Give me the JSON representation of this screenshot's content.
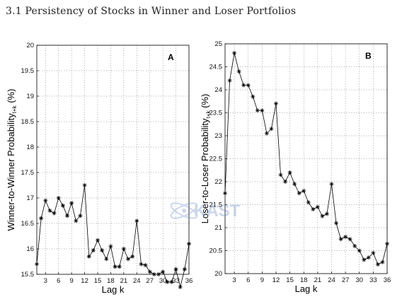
{
  "heading": "3.1 Persistency of Stocks in Winner and Loser Portfolios",
  "watermark_text": "KAST",
  "chart_data": [
    {
      "type": "line",
      "panel_label": "A",
      "xlabel": "Lag k",
      "ylabel_main": "Winner-to-Winner Probability",
      "ylabel_sub": "t+k",
      "ylabel_unit": " (%)",
      "xlim": [
        1,
        36
      ],
      "ylim": [
        15.5,
        20
      ],
      "xticks": [
        3,
        6,
        9,
        12,
        15,
        18,
        21,
        24,
        27,
        30,
        33,
        36
      ],
      "yticks": [
        15.5,
        16,
        16.5,
        17,
        17.5,
        18,
        18.5,
        19,
        19.5,
        20
      ],
      "ytick_labels": [
        "15.5",
        "16",
        "16.5",
        "17",
        "17.5",
        "18",
        "18.5",
        "19",
        "19.5",
        "20"
      ],
      "grid": true,
      "marker": "star",
      "x": [
        1,
        2,
        3,
        4,
        5,
        6,
        7,
        8,
        9,
        10,
        11,
        12,
        13,
        14,
        15,
        16,
        17,
        18,
        19,
        20,
        21,
        22,
        23,
        24,
        25,
        26,
        27,
        28,
        29,
        30,
        31,
        32,
        33,
        34,
        35,
        36
      ],
      "values": [
        15.7,
        16.6,
        16.95,
        16.75,
        16.7,
        17.0,
        16.85,
        16.65,
        16.9,
        16.55,
        16.65,
        17.25,
        15.85,
        15.97,
        16.17,
        15.97,
        15.8,
        16.05,
        15.65,
        15.65,
        16.0,
        15.8,
        15.85,
        16.55,
        15.7,
        15.68,
        15.55,
        15.5,
        15.5,
        15.55,
        15.35,
        15.35,
        15.6,
        15.25,
        15.6,
        16.1
      ]
    },
    {
      "type": "line",
      "panel_label": "B",
      "xlabel": "Lag k",
      "ylabel_main": "Loser-to-Loser Probability",
      "ylabel_sub": "t+k",
      "ylabel_unit": " (%)",
      "xlim": [
        1,
        36
      ],
      "ylim": [
        20,
        25
      ],
      "xticks": [
        3,
        6,
        9,
        12,
        15,
        18,
        21,
        24,
        27,
        30,
        33,
        36
      ],
      "yticks": [
        20,
        20.5,
        21,
        21.5,
        22,
        22.5,
        23,
        23.5,
        24,
        24.5,
        25
      ],
      "ytick_labels": [
        "20",
        "20.5",
        "21",
        "21.5",
        "22",
        "22.5",
        "23",
        "23.5",
        "24",
        "24.5",
        "25"
      ],
      "grid": true,
      "marker": "star",
      "x": [
        1,
        2,
        3,
        4,
        5,
        6,
        7,
        8,
        9,
        10,
        11,
        12,
        13,
        14,
        15,
        16,
        17,
        18,
        19,
        20,
        21,
        22,
        23,
        24,
        25,
        26,
        27,
        28,
        29,
        30,
        31,
        32,
        33,
        34,
        35,
        36
      ],
      "values": [
        21.75,
        24.2,
        24.8,
        24.4,
        24.1,
        24.1,
        23.85,
        23.55,
        23.55,
        23.05,
        23.15,
        23.7,
        22.15,
        22.0,
        22.2,
        21.95,
        21.75,
        21.8,
        21.55,
        21.4,
        21.45,
        21.25,
        21.3,
        21.95,
        21.1,
        20.75,
        20.8,
        20.75,
        20.6,
        20.5,
        20.3,
        20.35,
        20.45,
        20.2,
        20.25,
        20.65
      ]
    }
  ]
}
